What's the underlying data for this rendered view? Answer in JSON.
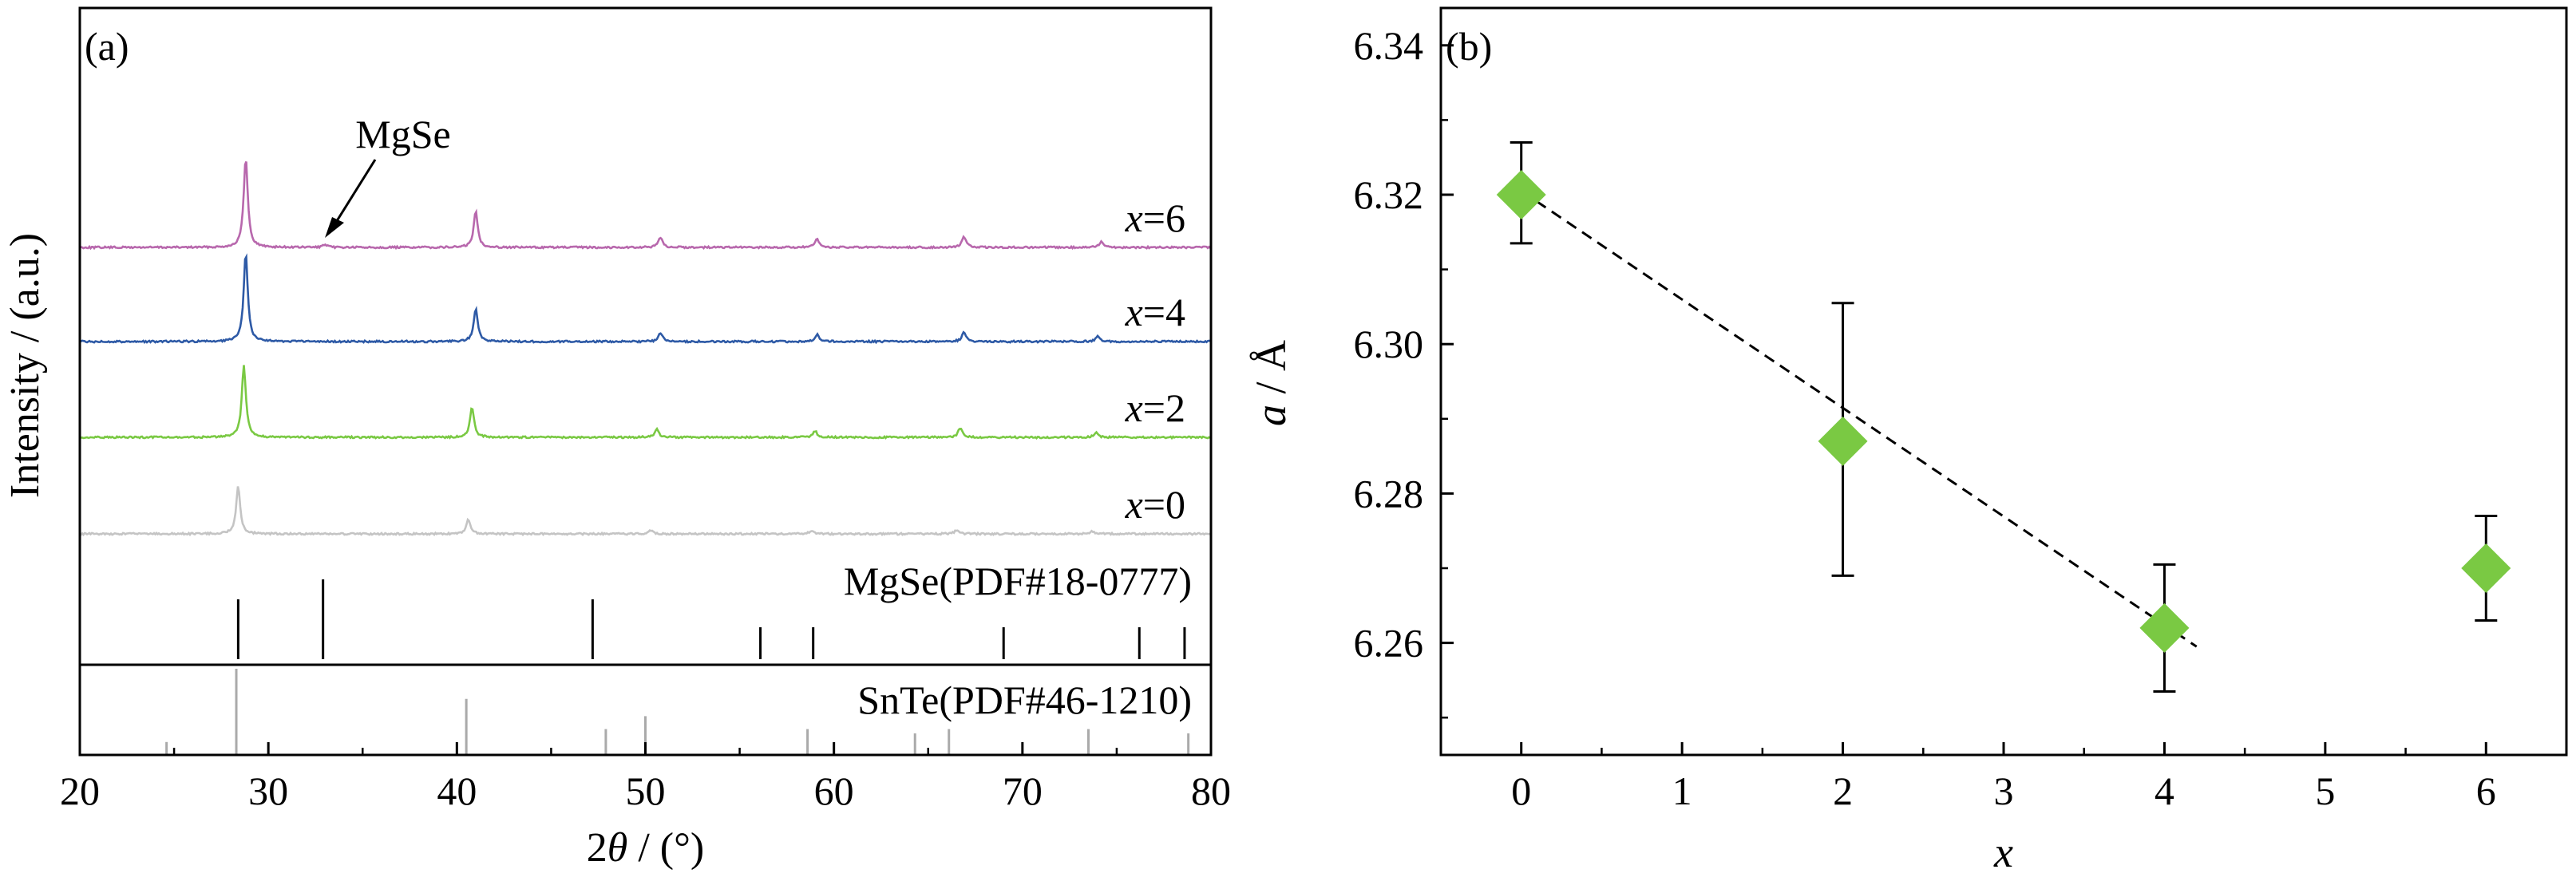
{
  "chart_data": [
    {
      "type": "line",
      "panel_label": "(a)",
      "xlabel_parts": [
        "2",
        "θ",
        " / (°)"
      ],
      "ylabel": "Intensity / (a.u.)",
      "xlim": [
        20,
        80
      ],
      "x_ticks": [
        20,
        30,
        40,
        50,
        60,
        70,
        80
      ],
      "y_ticks_shown": false,
      "series": [
        {
          "label_var": "x",
          "label_eq": "=6",
          "color": "#b868ad",
          "peaks": [
            {
              "x": 28.8,
              "h": 1.0
            },
            {
              "x": 33.0,
              "h": 0.03
            },
            {
              "x": 41.0,
              "h": 0.4
            },
            {
              "x": 50.8,
              "h": 0.11
            },
            {
              "x": 59.1,
              "h": 0.09
            },
            {
              "x": 66.9,
              "h": 0.12
            },
            {
              "x": 74.2,
              "h": 0.07
            }
          ]
        },
        {
          "label_var": "x",
          "label_eq": "=4",
          "color": "#2e5aa6",
          "peaks": [
            {
              "x": 28.8,
              "h": 1.0
            },
            {
              "x": 41.0,
              "h": 0.38
            },
            {
              "x": 50.8,
              "h": 0.1
            },
            {
              "x": 59.1,
              "h": 0.08
            },
            {
              "x": 66.9,
              "h": 0.11
            },
            {
              "x": 74.0,
              "h": 0.06
            }
          ]
        },
        {
          "label_var": "x",
          "label_eq": "=2",
          "color": "#7ac943",
          "peaks": [
            {
              "x": 28.7,
              "h": 1.0
            },
            {
              "x": 40.8,
              "h": 0.42
            },
            {
              "x": 50.6,
              "h": 0.12
            },
            {
              "x": 59.0,
              "h": 0.09
            },
            {
              "x": 66.7,
              "h": 0.13
            },
            {
              "x": 73.9,
              "h": 0.07
            }
          ]
        },
        {
          "label_var": "x",
          "label_eq": "=0",
          "color": "#c4c4c4",
          "peaks": [
            {
              "x": 28.4,
              "h": 1.0
            },
            {
              "x": 40.6,
              "h": 0.3
            },
            {
              "x": 50.3,
              "h": 0.08
            },
            {
              "x": 58.8,
              "h": 0.06
            },
            {
              "x": 66.5,
              "h": 0.08
            },
            {
              "x": 73.7,
              "h": 0.05
            }
          ]
        }
      ],
      "annotation": {
        "text": "MgSe",
        "target_x": 33.0
      },
      "references": [
        {
          "label": "MgSe(PDF#18-0777)",
          "color": "#000000",
          "lines": [
            {
              "x": 28.4,
              "h": 0.75
            },
            {
              "x": 32.9,
              "h": 1.0
            },
            {
              "x": 47.2,
              "h": 0.75
            },
            {
              "x": 56.1,
              "h": 0.4
            },
            {
              "x": 58.9,
              "h": 0.4
            },
            {
              "x": 69.0,
              "h": 0.4
            },
            {
              "x": 76.2,
              "h": 0.4
            },
            {
              "x": 78.6,
              "h": 0.4
            }
          ]
        },
        {
          "label": "SnTe(PDF#46-1210)",
          "color": "#aaaaaa",
          "lines": [
            {
              "x": 24.6,
              "h": 0.15
            },
            {
              "x": 28.3,
              "h": 1.0
            },
            {
              "x": 40.5,
              "h": 0.65
            },
            {
              "x": 47.9,
              "h": 0.3
            },
            {
              "x": 50.0,
              "h": 0.45
            },
            {
              "x": 58.6,
              "h": 0.3
            },
            {
              "x": 64.3,
              "h": 0.25
            },
            {
              "x": 66.1,
              "h": 0.3
            },
            {
              "x": 73.5,
              "h": 0.3
            },
            {
              "x": 78.8,
              "h": 0.25
            }
          ]
        }
      ]
    },
    {
      "type": "scatter",
      "panel_label": "(b)",
      "xlabel": "x",
      "ylabel_var": "a",
      "ylabel_unit": " / Å",
      "xlim": [
        -0.5,
        6.5
      ],
      "ylim": [
        6.245,
        6.345
      ],
      "x_ticks": [
        0,
        1,
        2,
        3,
        4,
        5,
        6
      ],
      "y_ticks": [
        "6.26",
        "6.28",
        "6.30",
        "6.32",
        "6.34"
      ],
      "marker_color": "#7ac943",
      "points": [
        {
          "x": 0,
          "y": 6.32,
          "err_lo": 6.3135,
          "err_hi": 6.327
        },
        {
          "x": 2,
          "y": 6.287,
          "err_lo": 6.269,
          "err_hi": 6.3055
        },
        {
          "x": 4,
          "y": 6.262,
          "err_lo": 6.2535,
          "err_hi": 6.2705
        },
        {
          "x": 6,
          "y": 6.27,
          "err_lo": 6.263,
          "err_hi": 6.277
        }
      ],
      "fit_line": {
        "x": [
          0,
          4.2
        ],
        "y": [
          6.3205,
          6.2595
        ],
        "style": "dashed"
      }
    }
  ]
}
